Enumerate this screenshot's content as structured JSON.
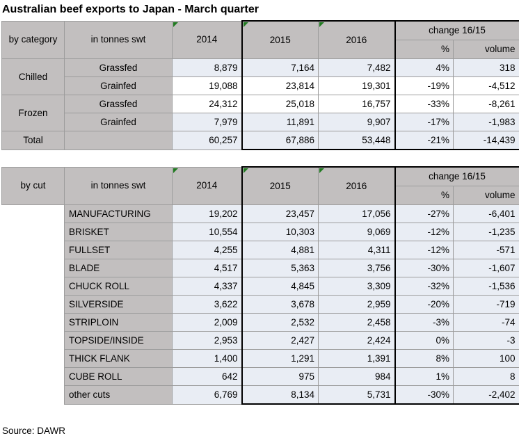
{
  "title": "Australian beef exports to Japan - March quarter",
  "source": "Source: DAWR",
  "colors": {
    "header_gray": "#c2bfbf",
    "row_blue": "#e9edf4",
    "row_white": "#ffffff",
    "gridline_gray": "#9c9c9c",
    "box_border_black": "#000000",
    "corner_flag_green": "#217a21"
  },
  "icons": {
    "year_header_corner_flag": "green-corner-flag"
  },
  "chart_data": [
    {
      "type": "table",
      "row_label_header": "by category",
      "unit_label": "in tonnes swt",
      "columns": [
        "2014",
        "2015",
        "2016",
        "%",
        "volume"
      ],
      "change_header": "change 16/15",
      "rows": [
        {
          "label": "Chilled",
          "sub": "Grassfed",
          "y2014": "8,879",
          "y2015": "7,164",
          "y2016": "7,482",
          "pct": "4%",
          "vol": "318"
        },
        {
          "sub": "Grainfed",
          "y2014": "19,088",
          "y2015": "23,814",
          "y2016": "19,301",
          "pct": "-19%",
          "vol": "-4,512"
        },
        {
          "label": "Frozen",
          "sub": "Grassfed",
          "y2014": "24,312",
          "y2015": "25,018",
          "y2016": "16,757",
          "pct": "-33%",
          "vol": "-8,261"
        },
        {
          "sub": "Grainfed",
          "y2014": "7,979",
          "y2015": "11,891",
          "y2016": "9,907",
          "pct": "-17%",
          "vol": "-1,983"
        },
        {
          "label": "Total",
          "sub": "",
          "y2014": "60,257",
          "y2015": "67,886",
          "y2016": "53,448",
          "pct": "-21%",
          "vol": "-14,439"
        }
      ]
    },
    {
      "type": "table",
      "row_label_header": "by cut",
      "unit_label": "in tonnes swt",
      "columns": [
        "2014",
        "2015",
        "2016",
        "%",
        "volume"
      ],
      "change_header": "change 16/15",
      "rows": [
        {
          "cut": "MANUFACTURING",
          "y2014": "19,202",
          "y2015": "23,457",
          "y2016": "17,056",
          "pct": "-27%",
          "vol": "-6,401"
        },
        {
          "cut": "BRISKET",
          "y2014": "10,554",
          "y2015": "10,303",
          "y2016": "9,069",
          "pct": "-12%",
          "vol": "-1,235"
        },
        {
          "cut": "FULLSET",
          "y2014": "4,255",
          "y2015": "4,881",
          "y2016": "4,311",
          "pct": "-12%",
          "vol": "-571"
        },
        {
          "cut": "BLADE",
          "y2014": "4,517",
          "y2015": "5,363",
          "y2016": "3,756",
          "pct": "-30%",
          "vol": "-1,607"
        },
        {
          "cut": "CHUCK ROLL",
          "y2014": "4,337",
          "y2015": "4,845",
          "y2016": "3,309",
          "pct": "-32%",
          "vol": "-1,536"
        },
        {
          "cut": "SILVERSIDE",
          "y2014": "3,622",
          "y2015": "3,678",
          "y2016": "2,959",
          "pct": "-20%",
          "vol": "-719"
        },
        {
          "cut": "STRIPLOIN",
          "y2014": "2,009",
          "y2015": "2,532",
          "y2016": "2,458",
          "pct": "-3%",
          "vol": "-74"
        },
        {
          "cut": "TOPSIDE/INSIDE",
          "y2014": "2,953",
          "y2015": "2,427",
          "y2016": "2,424",
          "pct": "0%",
          "vol": "-3"
        },
        {
          "cut": "THICK FLANK",
          "y2014": "1,400",
          "y2015": "1,291",
          "y2016": "1,391",
          "pct": "8%",
          "vol": "100"
        },
        {
          "cut": "CUBE ROLL",
          "y2014": "642",
          "y2015": "975",
          "y2016": "984",
          "pct": "1%",
          "vol": "8"
        },
        {
          "cut": "other cuts",
          "y2014": "6,769",
          "y2015": "8,134",
          "y2016": "5,731",
          "pct": "-30%",
          "vol": "-2,402"
        }
      ]
    }
  ]
}
